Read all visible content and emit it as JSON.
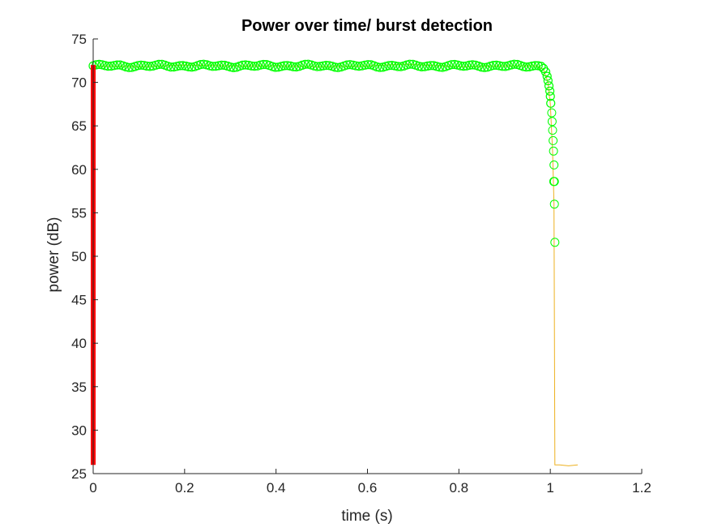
{
  "chart_data": {
    "type": "line",
    "title": "Power over time/ burst detection",
    "xlabel": "time (s)",
    "ylabel": "power (dB)",
    "xlim": [
      0,
      1.2
    ],
    "ylim": [
      25,
      75
    ],
    "xticks": [
      "0",
      "0.2",
      "0.4",
      "0.6",
      "0.8",
      "1",
      "1.2"
    ],
    "yticks": [
      "25",
      "30",
      "35",
      "40",
      "45",
      "50",
      "55",
      "60",
      "65",
      "70",
      "75"
    ],
    "grid": false,
    "legend": "none",
    "series": [
      {
        "style": "line",
        "color": "#EDB120",
        "x": [
          0,
          0.1,
          0.2,
          0.3,
          0.4,
          0.5,
          0.6,
          0.68,
          0.8,
          0.9,
          0.97,
          0.985,
          0.995,
          1.0,
          1.005,
          1.008,
          1.01,
          1.02,
          1.04,
          1.06
        ],
        "y": [
          71.9,
          71.8,
          72.0,
          71.9,
          71.9,
          71.8,
          71.9,
          72.1,
          71.8,
          71.9,
          71.9,
          71.5,
          70.0,
          67.5,
          62.0,
          56.0,
          26.0,
          26.0,
          25.9,
          26.0
        ]
      },
      {
        "style": "markers",
        "marker": "circle",
        "color": "#00FF00",
        "x": [
          1.003,
          1.004,
          1.005,
          1.006,
          1.007,
          1.008,
          1.009
        ],
        "y": [
          66.5,
          65.5,
          64.5,
          63.3,
          62.1,
          60.5,
          58.6
        ],
        "x2": [
          1.0075,
          1.009,
          1.01
        ],
        "y2": [
          58.6,
          56.0,
          51.6
        ]
      },
      {
        "style": "markers-dense",
        "marker": "circle",
        "color": "#00FF00",
        "x": [
          0,
          0.98
        ],
        "y": [
          71.9,
          71.9
        ]
      },
      {
        "style": "bar-line",
        "color": "#FF0000",
        "x": [
          0,
          0
        ],
        "y": [
          26,
          72
        ]
      }
    ]
  }
}
